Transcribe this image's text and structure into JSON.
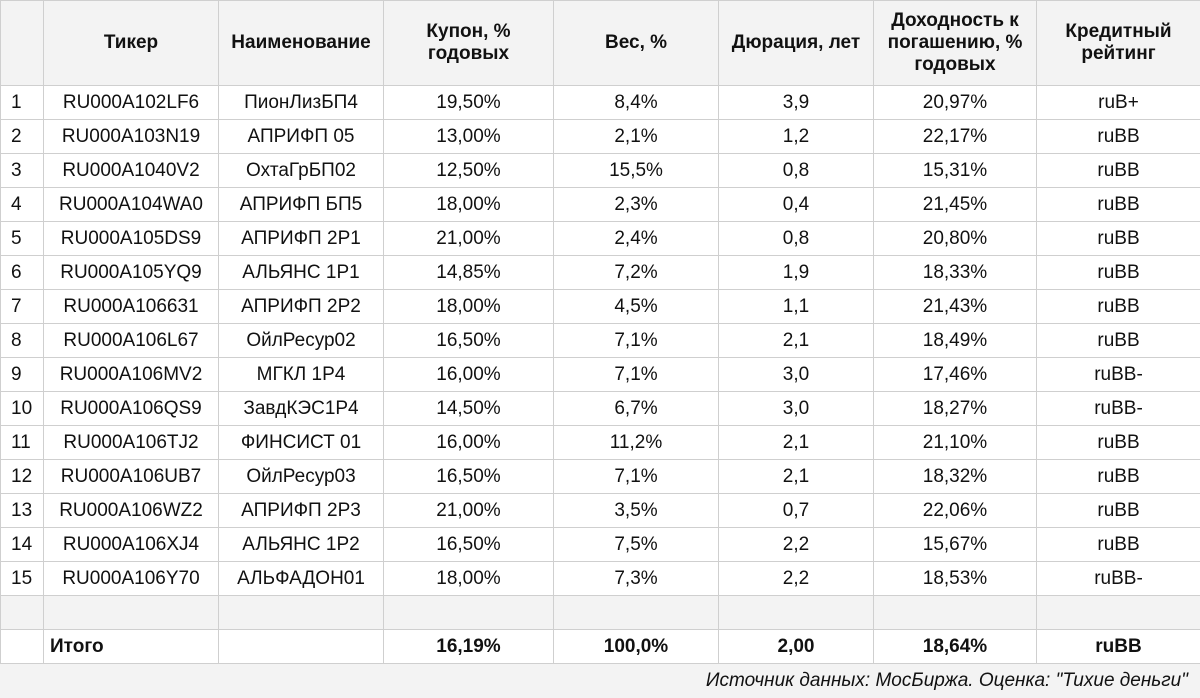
{
  "headers": [
    "",
    "Тикер",
    "Наименование",
    "Купон, % годовых",
    "Вес, %",
    "Дюрация, лет",
    "Доходность к погашению, % годовых",
    "Кредитный рейтинг"
  ],
  "rows": [
    [
      "1",
      "RU000A102LF6",
      "ПионЛизБП4",
      "19,50%",
      "8,4%",
      "3,9",
      "20,97%",
      "ruB+"
    ],
    [
      "2",
      "RU000A103N19",
      "АПРИФП 05",
      "13,00%",
      "2,1%",
      "1,2",
      "22,17%",
      "ruBB"
    ],
    [
      "3",
      "RU000A1040V2",
      "ОхтаГрБП02",
      "12,50%",
      "15,5%",
      "0,8",
      "15,31%",
      "ruBB"
    ],
    [
      "4",
      "RU000A104WA0",
      "АПРИФП БП5",
      "18,00%",
      "2,3%",
      "0,4",
      "21,45%",
      "ruBB"
    ],
    [
      "5",
      "RU000A105DS9",
      "АПРИФП 2Р1",
      "21,00%",
      "2,4%",
      "0,8",
      "20,80%",
      "ruBB"
    ],
    [
      "6",
      "RU000A105YQ9",
      "АЛЬЯНС 1Р1",
      "14,85%",
      "7,2%",
      "1,9",
      "18,33%",
      "ruBB"
    ],
    [
      "7",
      "RU000A106631",
      "АПРИФП 2Р2",
      "18,00%",
      "4,5%",
      "1,1",
      "21,43%",
      "ruBB"
    ],
    [
      "8",
      "RU000A106L67",
      "ОйлРесур02",
      "16,50%",
      "7,1%",
      "2,1",
      "18,49%",
      "ruBB"
    ],
    [
      "9",
      "RU000A106MV2",
      "МГКЛ 1Р4",
      "16,00%",
      "7,1%",
      "3,0",
      "17,46%",
      "ruBB-"
    ],
    [
      "10",
      "RU000A106QS9",
      "ЗавдКЭС1Р4",
      "14,50%",
      "6,7%",
      "3,0",
      "18,27%",
      "ruBB-"
    ],
    [
      "11",
      "RU000A106TJ2",
      "ФИНСИСТ 01",
      "16,00%",
      "11,2%",
      "2,1",
      "21,10%",
      "ruBB"
    ],
    [
      "12",
      "RU000A106UB7",
      "ОйлРесур03",
      "16,50%",
      "7,1%",
      "2,1",
      "18,32%",
      "ruBB"
    ],
    [
      "13",
      "RU000A106WZ2",
      "АПРИФП 2Р3",
      "21,00%",
      "3,5%",
      "0,7",
      "22,06%",
      "ruBB"
    ],
    [
      "14",
      "RU000A106XJ4",
      "АЛЬЯНС 1Р2",
      "16,50%",
      "7,5%",
      "2,2",
      "15,67%",
      "ruBB"
    ],
    [
      "15",
      "RU000A106Y70",
      "АЛЬФАДОН01",
      "18,00%",
      "7,3%",
      "2,2",
      "18,53%",
      "ruBB-"
    ]
  ],
  "total": {
    "label": "Итого",
    "coupon": "16,19%",
    "weight": "100,0%",
    "duration": "2,00",
    "ytm": "18,64%",
    "rating": "ruBB"
  },
  "footer": {
    "source": "Источник данных: МосБиржа. Оценка: \"Тихие деньги\""
  }
}
